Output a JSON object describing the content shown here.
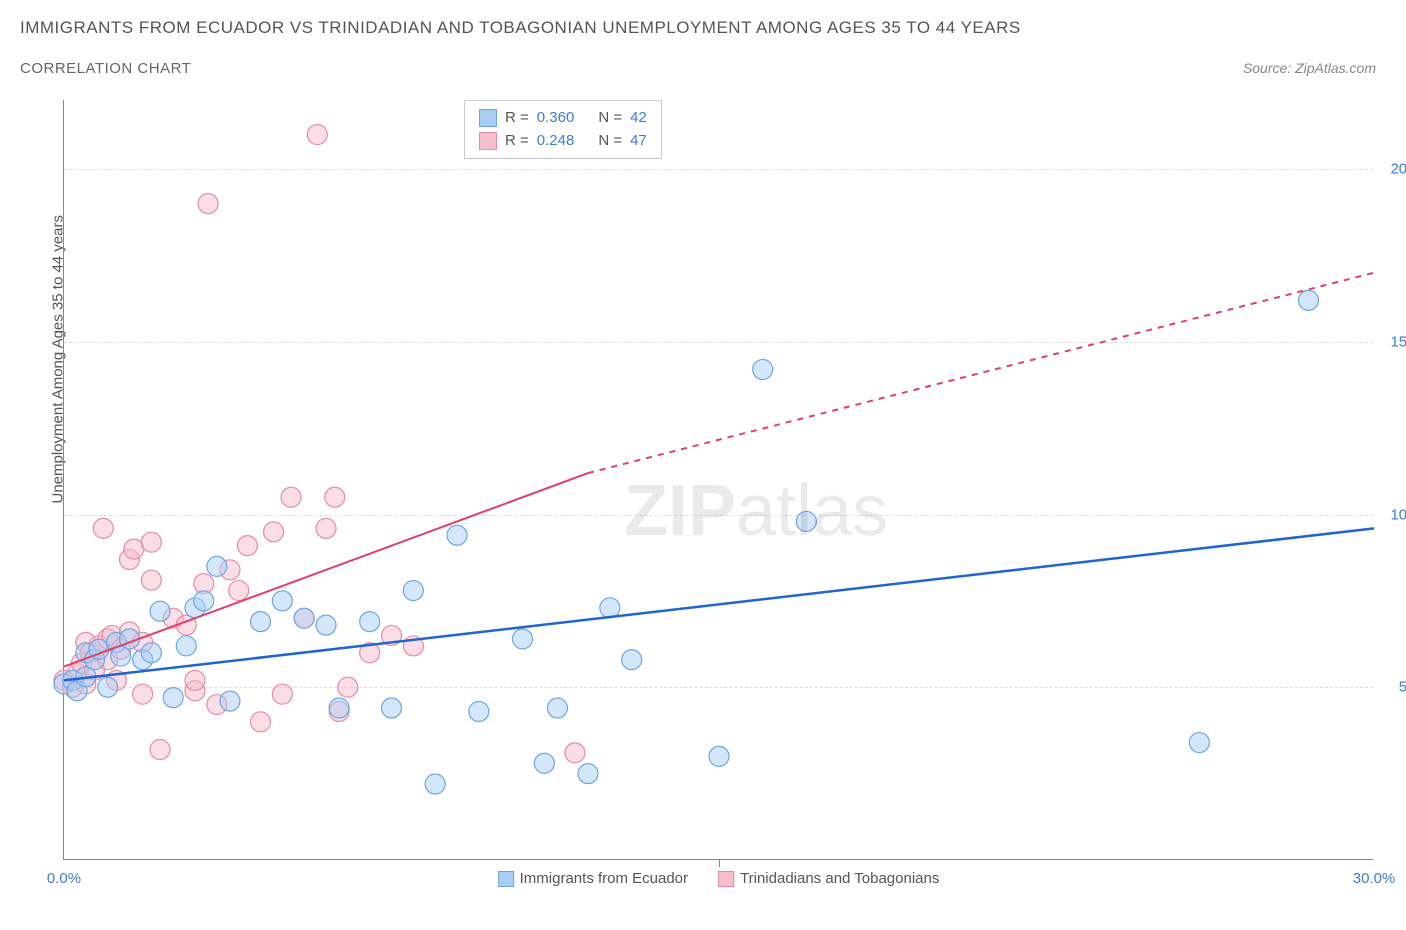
{
  "title": "IMMIGRANTS FROM ECUADOR VS TRINIDADIAN AND TOBAGONIAN UNEMPLOYMENT AMONG AGES 35 TO 44 YEARS",
  "subtitle": "CORRELATION CHART",
  "source": "Source: ZipAtlas.com",
  "y_axis_label": "Unemployment Among Ages 35 to 44 years",
  "watermark_bold": "ZIP",
  "watermark_light": "atlas",
  "chart": {
    "type": "scatter",
    "background_color": "#ffffff",
    "grid_color": "#dddddd",
    "axis_color": "#888888",
    "text_color": "#555555",
    "value_color": "#3b7dd8",
    "xlim": [
      0,
      30
    ],
    "ylim": [
      0,
      22
    ],
    "x_ticks": [
      0,
      30
    ],
    "x_tick_labels": [
      "0.0%",
      "30.0%"
    ],
    "y_gridlines": [
      5,
      10,
      15,
      20
    ],
    "y_tick_labels": [
      "5.0%",
      "10.0%",
      "15.0%",
      "20.0%"
    ],
    "x_minor_tick": 15,
    "series": [
      {
        "name": "Immigrants from Ecuador",
        "legend_label": "Immigrants from Ecuador",
        "fill_color": "#a9cdf4",
        "stroke_color": "#6ca6e8",
        "fill_opacity": 0.5,
        "marker_radius": 10,
        "line_color": "#1e66d0",
        "line_width": 2.5,
        "R": "0.360",
        "N": "42",
        "trend": {
          "x1": 0,
          "y1": 5.2,
          "x2": 30,
          "y2": 9.6
        },
        "points": [
          [
            0.0,
            5.1
          ],
          [
            0.2,
            5.2
          ],
          [
            0.3,
            4.9
          ],
          [
            0.5,
            5.3
          ],
          [
            0.5,
            6.0
          ],
          [
            0.7,
            5.8
          ],
          [
            0.8,
            6.1
          ],
          [
            1.0,
            5.0
          ],
          [
            1.2,
            6.3
          ],
          [
            1.3,
            5.9
          ],
          [
            1.5,
            6.4
          ],
          [
            1.8,
            5.8
          ],
          [
            2.0,
            6.0
          ],
          [
            2.2,
            7.2
          ],
          [
            2.5,
            4.7
          ],
          [
            2.8,
            6.2
          ],
          [
            3.0,
            7.3
          ],
          [
            3.2,
            7.5
          ],
          [
            3.5,
            8.5
          ],
          [
            3.8,
            4.6
          ],
          [
            4.5,
            6.9
          ],
          [
            5.0,
            7.5
          ],
          [
            5.5,
            7.0
          ],
          [
            6.0,
            6.8
          ],
          [
            6.3,
            4.4
          ],
          [
            7.0,
            6.9
          ],
          [
            7.5,
            4.4
          ],
          [
            8.0,
            7.8
          ],
          [
            8.5,
            2.2
          ],
          [
            9.0,
            9.4
          ],
          [
            9.5,
            4.3
          ],
          [
            10.5,
            6.4
          ],
          [
            11.0,
            2.8
          ],
          [
            11.3,
            4.4
          ],
          [
            12.0,
            2.5
          ],
          [
            12.5,
            7.3
          ],
          [
            13.0,
            5.8
          ],
          [
            15.0,
            3.0
          ],
          [
            16.0,
            14.2
          ],
          [
            17.0,
            9.8
          ],
          [
            26.0,
            3.4
          ],
          [
            28.5,
            16.2
          ]
        ]
      },
      {
        "name": "Trinidadians and Tobagonians",
        "legend_label": "Trinidadians and Tobagonians",
        "fill_color": "#f6bccb",
        "stroke_color": "#e88ba3",
        "fill_opacity": 0.5,
        "marker_radius": 10,
        "line_color": "#e23f6b",
        "line_width": 2,
        "R": "0.248",
        "N": "47",
        "trend_solid": {
          "x1": 0,
          "y1": 5.6,
          "x2": 12,
          "y2": 11.2
        },
        "trend_dashed": {
          "x1": 12,
          "y1": 11.2,
          "x2": 30,
          "y2": 17.0
        },
        "points": [
          [
            0.0,
            5.2
          ],
          [
            0.2,
            5.0
          ],
          [
            0.3,
            5.4
          ],
          [
            0.4,
            5.7
          ],
          [
            0.5,
            6.3
          ],
          [
            0.5,
            5.1
          ],
          [
            0.6,
            6.0
          ],
          [
            0.7,
            5.5
          ],
          [
            0.8,
            6.2
          ],
          [
            0.9,
            9.6
          ],
          [
            1.0,
            6.4
          ],
          [
            1.0,
            5.8
          ],
          [
            1.1,
            6.5
          ],
          [
            1.2,
            5.2
          ],
          [
            1.3,
            6.1
          ],
          [
            1.5,
            6.6
          ],
          [
            1.5,
            8.7
          ],
          [
            1.6,
            9.0
          ],
          [
            1.8,
            6.3
          ],
          [
            1.8,
            4.8
          ],
          [
            2.0,
            8.1
          ],
          [
            2.0,
            9.2
          ],
          [
            2.2,
            3.2
          ],
          [
            2.5,
            7.0
          ],
          [
            2.8,
            6.8
          ],
          [
            3.0,
            4.9
          ],
          [
            3.0,
            5.2
          ],
          [
            3.2,
            8.0
          ],
          [
            3.3,
            19.0
          ],
          [
            3.5,
            4.5
          ],
          [
            3.8,
            8.4
          ],
          [
            4.0,
            7.8
          ],
          [
            4.2,
            9.1
          ],
          [
            4.5,
            4.0
          ],
          [
            4.8,
            9.5
          ],
          [
            5.0,
            4.8
          ],
          [
            5.2,
            10.5
          ],
          [
            5.5,
            7.0
          ],
          [
            5.8,
            21.0
          ],
          [
            6.0,
            9.6
          ],
          [
            6.2,
            10.5
          ],
          [
            6.3,
            4.3
          ],
          [
            6.5,
            5.0
          ],
          [
            7.0,
            6.0
          ],
          [
            7.5,
            6.5
          ],
          [
            8.0,
            6.2
          ],
          [
            11.7,
            3.1
          ]
        ]
      }
    ]
  },
  "legend_stats_labels": {
    "R": "R =",
    "N": "N ="
  }
}
